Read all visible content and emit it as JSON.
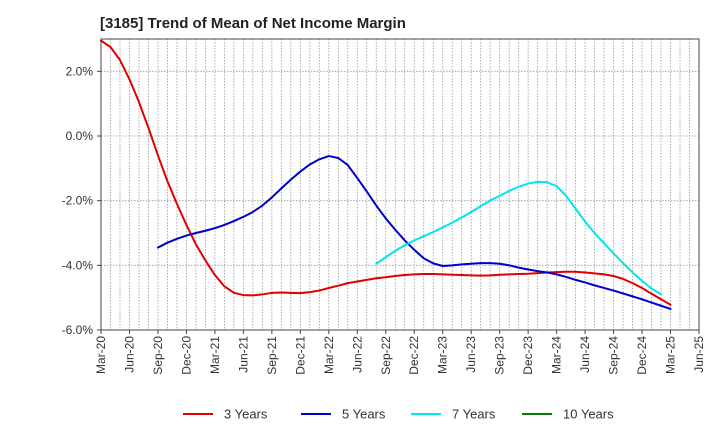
{
  "chart_data": {
    "type": "line",
    "title": "[3185]  Trend of Mean of Net Income Margin",
    "xlabel": "",
    "ylabel": "",
    "x_ticks": [
      "Mar-20",
      "Jun-20",
      "Sep-20",
      "Dec-20",
      "Mar-21",
      "Jun-21",
      "Sep-21",
      "Dec-21",
      "Mar-22",
      "Jun-22",
      "Sep-22",
      "Dec-22",
      "Mar-23",
      "Jun-23",
      "Sep-23",
      "Dec-23",
      "Mar-24",
      "Jun-24",
      "Sep-24",
      "Dec-24",
      "Mar-25",
      "Jun-25"
    ],
    "y_ticks": [
      "2.0%",
      "0.0%",
      "-2.0%",
      "-4.0%",
      "-6.0%"
    ],
    "ylim": [
      -6.0,
      3.0
    ],
    "y_unit": "%",
    "grid": true,
    "legend_position": "bottom",
    "series": [
      {
        "name": "3 Years",
        "color": "#e00000",
        "points": [
          [
            "Mar-20",
            2.95
          ],
          [
            "Apr-20",
            2.75
          ],
          [
            "May-20",
            2.35
          ],
          [
            "Jun-20",
            1.75
          ],
          [
            "Jul-20",
            1.05
          ],
          [
            "Aug-20",
            0.25
          ],
          [
            "Sep-20",
            -0.6
          ],
          [
            "Oct-20",
            -1.4
          ],
          [
            "Nov-20",
            -2.1
          ],
          [
            "Dec-20",
            -2.75
          ],
          [
            "Jan-21",
            -3.35
          ],
          [
            "Feb-21",
            -3.85
          ],
          [
            "Mar-21",
            -4.3
          ],
          [
            "Apr-21",
            -4.65
          ],
          [
            "May-21",
            -4.85
          ],
          [
            "Jun-21",
            -4.92
          ],
          [
            "Jul-21",
            -4.93
          ],
          [
            "Aug-21",
            -4.9
          ],
          [
            "Sep-21",
            -4.85
          ],
          [
            "Oct-21",
            -4.84
          ],
          [
            "Nov-21",
            -4.85
          ],
          [
            "Dec-21",
            -4.86
          ],
          [
            "Jan-22",
            -4.83
          ],
          [
            "Feb-22",
            -4.78
          ],
          [
            "Mar-22",
            -4.7
          ],
          [
            "Apr-22",
            -4.63
          ],
          [
            "May-22",
            -4.55
          ],
          [
            "Jun-22",
            -4.5
          ],
          [
            "Jul-22",
            -4.45
          ],
          [
            "Aug-22",
            -4.4
          ],
          [
            "Sep-22",
            -4.37
          ],
          [
            "Oct-22",
            -4.33
          ],
          [
            "Nov-22",
            -4.3
          ],
          [
            "Dec-22",
            -4.28
          ],
          [
            "Jan-23",
            -4.27
          ],
          [
            "Feb-23",
            -4.27
          ],
          [
            "Mar-23",
            -4.28
          ],
          [
            "Apr-23",
            -4.29
          ],
          [
            "May-23",
            -4.3
          ],
          [
            "Jun-23",
            -4.31
          ],
          [
            "Jul-23",
            -4.32
          ],
          [
            "Aug-23",
            -4.31
          ],
          [
            "Sep-23",
            -4.29
          ],
          [
            "Oct-23",
            -4.28
          ],
          [
            "Nov-23",
            -4.27
          ],
          [
            "Dec-23",
            -4.26
          ],
          [
            "Jan-24",
            -4.24
          ],
          [
            "Feb-24",
            -4.22
          ],
          [
            "Mar-24",
            -4.21
          ],
          [
            "Apr-24",
            -4.2
          ],
          [
            "May-24",
            -4.2
          ],
          [
            "Jun-24",
            -4.22
          ],
          [
            "Jul-24",
            -4.25
          ],
          [
            "Aug-24",
            -4.28
          ],
          [
            "Sep-24",
            -4.33
          ],
          [
            "Oct-24",
            -4.42
          ],
          [
            "Nov-24",
            -4.55
          ],
          [
            "Dec-24",
            -4.7
          ],
          [
            "Jan-25",
            -4.88
          ],
          [
            "Feb-25",
            -5.05
          ],
          [
            "Mar-25",
            -5.22
          ]
        ]
      },
      {
        "name": "5 Years",
        "color": "#0000cc",
        "points": [
          [
            "Sep-20",
            -3.45
          ],
          [
            "Oct-20",
            -3.3
          ],
          [
            "Nov-20",
            -3.18
          ],
          [
            "Dec-20",
            -3.08
          ],
          [
            "Jan-21",
            -3.0
          ],
          [
            "Feb-21",
            -2.93
          ],
          [
            "Mar-21",
            -2.85
          ],
          [
            "Apr-21",
            -2.75
          ],
          [
            "May-21",
            -2.63
          ],
          [
            "Jun-21",
            -2.5
          ],
          [
            "Jul-21",
            -2.35
          ],
          [
            "Aug-21",
            -2.15
          ],
          [
            "Sep-21",
            -1.9
          ],
          [
            "Oct-21",
            -1.62
          ],
          [
            "Nov-21",
            -1.35
          ],
          [
            "Dec-21",
            -1.1
          ],
          [
            "Jan-22",
            -0.88
          ],
          [
            "Feb-22",
            -0.72
          ],
          [
            "Mar-22",
            -0.62
          ],
          [
            "Apr-22",
            -0.68
          ],
          [
            "May-22",
            -0.9
          ],
          [
            "Jun-22",
            -1.3
          ],
          [
            "Jul-22",
            -1.72
          ],
          [
            "Aug-22",
            -2.15
          ],
          [
            "Sep-22",
            -2.55
          ],
          [
            "Oct-22",
            -2.9
          ],
          [
            "Nov-22",
            -3.23
          ],
          [
            "Dec-22",
            -3.52
          ],
          [
            "Jan-23",
            -3.78
          ],
          [
            "Feb-23",
            -3.94
          ],
          [
            "Mar-23",
            -4.02
          ],
          [
            "Apr-23",
            -4.0
          ],
          [
            "May-23",
            -3.97
          ],
          [
            "Jun-23",
            -3.95
          ],
          [
            "Jul-23",
            -3.93
          ],
          [
            "Aug-23",
            -3.93
          ],
          [
            "Sep-23",
            -3.95
          ],
          [
            "Oct-23",
            -4.0
          ],
          [
            "Nov-23",
            -4.07
          ],
          [
            "Dec-23",
            -4.13
          ],
          [
            "Jan-24",
            -4.18
          ],
          [
            "Feb-24",
            -4.22
          ],
          [
            "Mar-24",
            -4.28
          ],
          [
            "Apr-24",
            -4.36
          ],
          [
            "May-24",
            -4.45
          ],
          [
            "Jun-24",
            -4.53
          ],
          [
            "Jul-24",
            -4.62
          ],
          [
            "Aug-24",
            -4.7
          ],
          [
            "Sep-24",
            -4.78
          ],
          [
            "Oct-24",
            -4.87
          ],
          [
            "Nov-24",
            -4.96
          ],
          [
            "Dec-24",
            -5.05
          ],
          [
            "Jan-25",
            -5.15
          ],
          [
            "Feb-25",
            -5.25
          ],
          [
            "Mar-25",
            -5.35
          ]
        ]
      },
      {
        "name": "7 Years",
        "color": "#00e5ee",
        "points": [
          [
            "Aug-22",
            -3.95
          ],
          [
            "Sep-22",
            -3.75
          ],
          [
            "Oct-22",
            -3.55
          ],
          [
            "Nov-22",
            -3.38
          ],
          [
            "Dec-22",
            -3.23
          ],
          [
            "Jan-23",
            -3.1
          ],
          [
            "Feb-23",
            -2.97
          ],
          [
            "Mar-23",
            -2.83
          ],
          [
            "Apr-23",
            -2.68
          ],
          [
            "May-23",
            -2.52
          ],
          [
            "Jun-23",
            -2.35
          ],
          [
            "Jul-23",
            -2.17
          ],
          [
            "Aug-23",
            -2.0
          ],
          [
            "Sep-23",
            -1.85
          ],
          [
            "Oct-23",
            -1.7
          ],
          [
            "Nov-23",
            -1.57
          ],
          [
            "Dec-23",
            -1.47
          ],
          [
            "Jan-24",
            -1.42
          ],
          [
            "Feb-24",
            -1.43
          ],
          [
            "Mar-24",
            -1.55
          ],
          [
            "Apr-24",
            -1.85
          ],
          [
            "May-24",
            -2.25
          ],
          [
            "Jun-24",
            -2.65
          ],
          [
            "Jul-24",
            -3.0
          ],
          [
            "Aug-24",
            -3.32
          ],
          [
            "Sep-24",
            -3.63
          ],
          [
            "Oct-24",
            -3.93
          ],
          [
            "Nov-24",
            -4.22
          ],
          [
            "Dec-24",
            -4.48
          ],
          [
            "Jan-25",
            -4.72
          ],
          [
            "Feb-25",
            -4.9
          ]
        ]
      },
      {
        "name": "10 Years",
        "color": "#008000",
        "points": []
      }
    ]
  }
}
